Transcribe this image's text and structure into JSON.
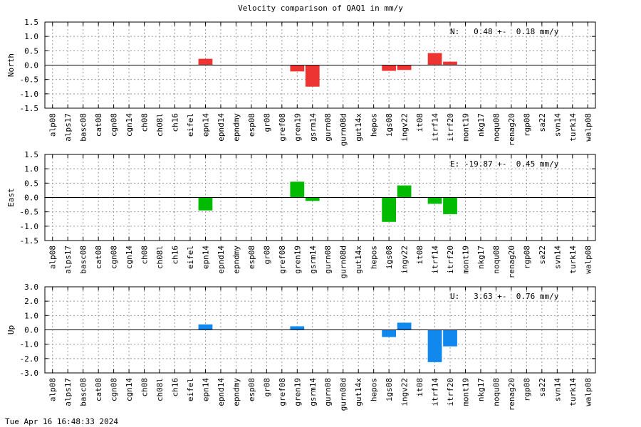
{
  "title": "Velocity comparison of QAQ1 in mm/y",
  "timestamp": "Tue Apr 16 16:48:33 2024",
  "chart_data": {
    "type": "bar",
    "categories": [
      "alp08",
      "alps17",
      "basc08",
      "cat08",
      "cgn08",
      "cgn14",
      "ch08",
      "ch08l",
      "ch16",
      "eifel",
      "epn14",
      "epnd14",
      "epndmy",
      "esp08",
      "gr08",
      "gref08",
      "gren19",
      "gsrm14",
      "gurn08",
      "gurn08d",
      "gut14x",
      "hepos",
      "igs08",
      "ingv22",
      "it08",
      "itrf14",
      "itrf20",
      "mont19",
      "nkg17",
      "noqu08",
      "renag20",
      "rgp08",
      "sa22",
      "svn14",
      "turk14",
      "walp08"
    ],
    "panels": [
      {
        "ylabel": "North",
        "color": "#ee3333",
        "ylim": [
          -1.5,
          1.5
        ],
        "yticks": [
          "1.5",
          "1.0",
          "0.5",
          "0.0",
          "-0.5",
          "-1.0",
          "-1.5"
        ],
        "annotation": "N:   0.48 +-  0.18 mm/y",
        "values": [
          null,
          null,
          null,
          null,
          null,
          null,
          null,
          null,
          null,
          null,
          0.22,
          null,
          null,
          null,
          null,
          null,
          -0.22,
          -0.75,
          null,
          null,
          null,
          null,
          -0.2,
          -0.17,
          null,
          0.42,
          0.12,
          null,
          null,
          null,
          null,
          null,
          null,
          null,
          null,
          null
        ]
      },
      {
        "ylabel": "East",
        "color": "#00bb00",
        "ylim": [
          -1.5,
          1.5
        ],
        "yticks": [
          "1.5",
          "1.0",
          "0.5",
          "0.0",
          "-0.5",
          "-1.0",
          "-1.5"
        ],
        "annotation": "E: -19.87 +-  0.45 mm/y",
        "values": [
          null,
          null,
          null,
          null,
          null,
          null,
          null,
          null,
          null,
          null,
          -0.45,
          null,
          null,
          null,
          null,
          null,
          0.55,
          -0.12,
          null,
          null,
          null,
          null,
          -0.85,
          0.42,
          null,
          -0.22,
          -0.58,
          null,
          null,
          null,
          null,
          null,
          null,
          null,
          null,
          null
        ]
      },
      {
        "ylabel": "Up",
        "color": "#1188ee",
        "ylim": [
          -3.0,
          3.0
        ],
        "yticks": [
          "3.0",
          "2.0",
          "1.0",
          "0.0",
          "-1.0",
          "-2.0",
          "-3.0"
        ],
        "annotation": "U:   3.63 +-  0.76 mm/y",
        "values": [
          null,
          null,
          null,
          null,
          null,
          null,
          null,
          null,
          null,
          null,
          0.38,
          null,
          null,
          null,
          null,
          null,
          0.25,
          null,
          null,
          null,
          null,
          null,
          -0.5,
          0.5,
          null,
          -2.25,
          -1.15,
          null,
          null,
          null,
          null,
          null,
          null,
          null,
          null,
          null
        ]
      }
    ]
  }
}
